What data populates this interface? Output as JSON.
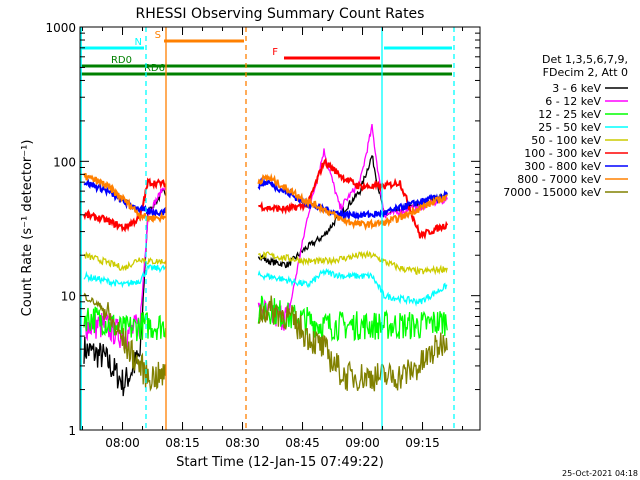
{
  "chart_data": {
    "type": "line",
    "title": "RHESSI Observing Summary Count Rates",
    "xlabel": "Start Time (12-Jan-15 07:49:22)",
    "ylabel": "Count Rate (s⁻¹ detector⁻¹)",
    "yscale": "log",
    "ylim": [
      1,
      1000
    ],
    "xlim_minutes": [
      0,
      100
    ],
    "x_ticks": [
      {
        "minute": 10.63,
        "label": "08:00"
      },
      {
        "minute": 25.63,
        "label": "08:15"
      },
      {
        "minute": 40.63,
        "label": "08:30"
      },
      {
        "minute": 55.63,
        "label": "08:45"
      },
      {
        "minute": 70.63,
        "label": "09:00"
      },
      {
        "minute": 85.63,
        "label": "09:15"
      }
    ],
    "y_ticks": [
      {
        "value": 1,
        "label": "1"
      },
      {
        "value": 10,
        "label": "10"
      },
      {
        "value": 100,
        "label": "100"
      },
      {
        "value": 1000,
        "label": "1000"
      }
    ],
    "legend": {
      "header": [
        "Det 1,3,5,6,7,9,",
        "FDecim 2, Att 0"
      ],
      "placement": "right"
    },
    "series": [
      {
        "name": "3 - 6 keV",
        "color": "#000000",
        "points": [
          [
            1,
            4
          ],
          [
            6,
            3.5
          ],
          [
            11,
            2.2
          ],
          [
            15,
            3.6
          ],
          [
            17,
            42
          ],
          [
            21,
            60
          ],
          [
            47,
            18
          ],
          [
            52,
            17
          ],
          [
            56,
            22
          ],
          [
            61,
            28
          ],
          [
            65,
            40
          ],
          [
            70,
            60
          ],
          [
            73,
            110
          ],
          [
            76,
            40
          ],
          [
            80,
            43
          ],
          [
            85,
            48
          ],
          [
            92,
            56
          ]
        ]
      },
      {
        "name": "6 - 12 keV",
        "color": "#ff00ff",
        "points": [
          [
            1,
            6
          ],
          [
            6,
            6
          ],
          [
            11,
            5
          ],
          [
            15,
            6
          ],
          [
            17,
            40
          ],
          [
            21,
            65
          ],
          [
            47,
            7
          ],
          [
            52,
            7
          ],
          [
            57,
            40
          ],
          [
            61,
            120
          ],
          [
            65,
            45
          ],
          [
            70,
            70
          ],
          [
            73,
            180
          ],
          [
            76,
            40
          ],
          [
            80,
            42
          ],
          [
            85,
            46
          ],
          [
            92,
            52
          ]
        ]
      },
      {
        "name": "12 - 25 keV",
        "color": "#00ff00",
        "points": [
          [
            1,
            7
          ],
          [
            6,
            6.5
          ],
          [
            11,
            5.5
          ],
          [
            15,
            6
          ],
          [
            17,
            6
          ],
          [
            21,
            6
          ],
          [
            47,
            8
          ],
          [
            52,
            7
          ],
          [
            57,
            6.5
          ],
          [
            61,
            6
          ],
          [
            66,
            6
          ],
          [
            70,
            6
          ],
          [
            73,
            6
          ],
          [
            76,
            6
          ],
          [
            80,
            6
          ],
          [
            85,
            6
          ],
          [
            92,
            6.5
          ]
        ]
      },
      {
        "name": "25 - 50 keV",
        "color": "#00ffff",
        "points": [
          [
            1,
            14
          ],
          [
            6,
            13
          ],
          [
            11,
            12
          ],
          [
            15,
            13
          ],
          [
            17,
            16
          ],
          [
            21,
            16
          ],
          [
            47,
            14
          ],
          [
            52,
            13
          ],
          [
            57,
            12
          ],
          [
            61,
            15
          ],
          [
            66,
            14
          ],
          [
            70,
            14
          ],
          [
            73,
            14
          ],
          [
            76,
            10
          ],
          [
            80,
            9.5
          ],
          [
            85,
            9
          ],
          [
            92,
            12
          ]
        ]
      },
      {
        "name": "50 - 100 keV",
        "color": "#cccc00",
        "points": [
          [
            1,
            20
          ],
          [
            6,
            18
          ],
          [
            11,
            16
          ],
          [
            15,
            19
          ],
          [
            17,
            18
          ],
          [
            21,
            18
          ],
          [
            47,
            20
          ],
          [
            52,
            19
          ],
          [
            57,
            18
          ],
          [
            61,
            18
          ],
          [
            66,
            19
          ],
          [
            70,
            20
          ],
          [
            73,
            20
          ],
          [
            76,
            18
          ],
          [
            80,
            16
          ],
          [
            85,
            15
          ],
          [
            92,
            16
          ]
        ]
      },
      {
        "name": "100 - 300 keV",
        "color": "#ff0000",
        "points": [
          [
            1,
            40
          ],
          [
            6,
            37
          ],
          [
            11,
            32
          ],
          [
            15,
            38
          ],
          [
            17,
            70
          ],
          [
            21,
            68
          ],
          [
            47,
            45
          ],
          [
            52,
            44
          ],
          [
            57,
            48
          ],
          [
            61,
            100
          ],
          [
            66,
            75
          ],
          [
            70,
            65
          ],
          [
            73,
            65
          ],
          [
            76,
            65
          ],
          [
            80,
            70
          ],
          [
            85,
            28
          ],
          [
            92,
            34
          ]
        ]
      },
      {
        "name": "300 - 800 keV",
        "color": "#0000ff",
        "points": [
          [
            1,
            70
          ],
          [
            6,
            62
          ],
          [
            11,
            50
          ],
          [
            15,
            44
          ],
          [
            17,
            42
          ],
          [
            21,
            42
          ],
          [
            47,
            70
          ],
          [
            52,
            58
          ],
          [
            57,
            48
          ],
          [
            61,
            44
          ],
          [
            66,
            40
          ],
          [
            70,
            40
          ],
          [
            73,
            40
          ],
          [
            76,
            41
          ],
          [
            80,
            45
          ],
          [
            85,
            50
          ],
          [
            92,
            56
          ]
        ]
      },
      {
        "name": "800 - 7000 keV",
        "color": "#ff8000",
        "points": [
          [
            1,
            78
          ],
          [
            6,
            68
          ],
          [
            11,
            52
          ],
          [
            15,
            40
          ],
          [
            17,
            38
          ],
          [
            21,
            38
          ],
          [
            47,
            76
          ],
          [
            52,
            62
          ],
          [
            57,
            50
          ],
          [
            61,
            44
          ],
          [
            66,
            36
          ],
          [
            70,
            34
          ],
          [
            73,
            34
          ],
          [
            76,
            35
          ],
          [
            80,
            38
          ],
          [
            85,
            45
          ],
          [
            92,
            55
          ]
        ]
      },
      {
        "name": "7000 - 15000 keV",
        "color": "#808000",
        "points": [
          [
            1,
            10
          ],
          [
            6,
            8
          ],
          [
            11,
            4.5
          ],
          [
            15,
            3
          ],
          [
            17,
            2.5
          ],
          [
            21,
            2.5
          ],
          [
            47,
            8
          ],
          [
            52,
            7
          ],
          [
            57,
            5
          ],
          [
            61,
            4
          ],
          [
            66,
            2.5
          ],
          [
            70,
            2.5
          ],
          [
            73,
            2.5
          ],
          [
            76,
            2.5
          ],
          [
            80,
            2.5
          ],
          [
            85,
            3
          ],
          [
            92,
            5
          ]
        ]
      }
    ],
    "flags": [
      {
        "label": "S",
        "color": "#ff8000",
        "start": 21,
        "end": 41
      },
      {
        "label": "N",
        "color": "#00ffff",
        "start": 0,
        "end": 16
      },
      {
        "label": "N",
        "color": "#00ffff",
        "start": 76,
        "end": 93
      },
      {
        "label": "F",
        "color": "#ff0000",
        "start": 51,
        "end": 75
      },
      {
        "label": "RD0",
        "color": "#008000",
        "start": 0,
        "end": 93
      },
      {
        "label": "RD6",
        "color": "#008000",
        "start": 0,
        "end": 93
      }
    ],
    "vertical_markers": [
      {
        "minute": 0.3,
        "color": "#00ffff",
        "style": "solid"
      },
      {
        "minute": 16.5,
        "color": "#00ffff",
        "style": "dashed"
      },
      {
        "minute": 21.5,
        "color": "#ff8000",
        "style": "solid"
      },
      {
        "minute": 41.5,
        "color": "#ff8000",
        "style": "dashed"
      },
      {
        "minute": 75.5,
        "color": "#00ffff",
        "style": "solid"
      },
      {
        "minute": 93.5,
        "color": "#00ffff",
        "style": "dashed"
      }
    ],
    "gap": {
      "start": 21.5,
      "end": 44.5
    }
  },
  "footer": {
    "timestamp": "25-Oct-2021 04:18"
  }
}
